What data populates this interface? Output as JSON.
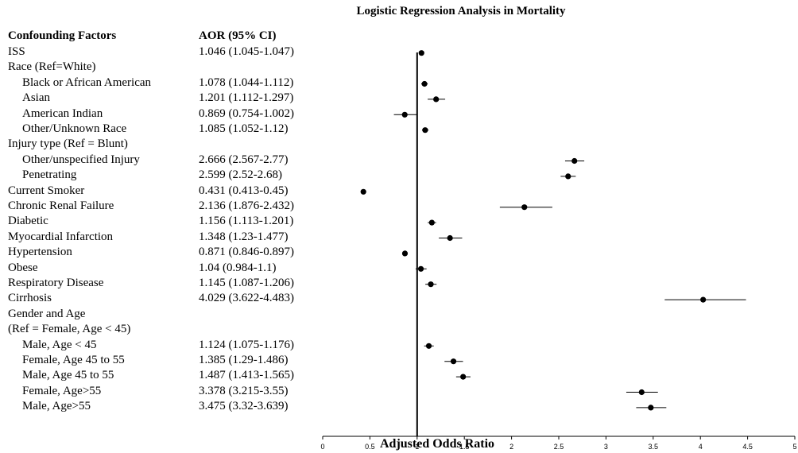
{
  "chart_data": {
    "type": "forest",
    "title": "Logistic Regression Analysis in Mortality",
    "xlabel": "Adjusted Odds Ratio",
    "col_headers": [
      "Confounding Factors",
      "AOR (95% CI)"
    ],
    "xlim": [
      0,
      5
    ],
    "xticks": [
      "0",
      "0.5",
      "1",
      "1.5",
      "2",
      "2.5",
      "3",
      "3.5",
      "4",
      "4.5",
      "5"
    ],
    "reference_line": 1,
    "rows": [
      {
        "label": "ISS",
        "indent": false,
        "aor_text": "1.046 (1.045-1.047)",
        "aor": 1.046,
        "lo": 1.045,
        "hi": 1.047
      },
      {
        "label": "Race (Ref=White)",
        "indent": false,
        "aor_text": "",
        "aor": null,
        "lo": null,
        "hi": null
      },
      {
        "label": "Black or African American",
        "indent": true,
        "aor_text": "1.078 (1.044-1.112)",
        "aor": 1.078,
        "lo": 1.044,
        "hi": 1.112
      },
      {
        "label": "Asian",
        "indent": true,
        "aor_text": "1.201 (1.112-1.297)",
        "aor": 1.201,
        "lo": 1.112,
        "hi": 1.297
      },
      {
        "label": "American Indian",
        "indent": true,
        "aor_text": "0.869 (0.754-1.002)",
        "aor": 0.869,
        "lo": 0.754,
        "hi": 1.002
      },
      {
        "label": "Other/Unknown Race",
        "indent": true,
        "aor_text": "1.085 (1.052-1.12)",
        "aor": 1.085,
        "lo": 1.052,
        "hi": 1.12
      },
      {
        "label": "Injury type (Ref = Blunt)",
        "indent": false,
        "aor_text": "",
        "aor": null,
        "lo": null,
        "hi": null
      },
      {
        "label": "Other/unspecified Injury",
        "indent": true,
        "aor_text": "2.666 (2.567-2.77)",
        "aor": 2.666,
        "lo": 2.567,
        "hi": 2.77
      },
      {
        "label": "Penetrating",
        "indent": true,
        "aor_text": "2.599 (2.52-2.68)",
        "aor": 2.599,
        "lo": 2.52,
        "hi": 2.68
      },
      {
        "label": "Current Smoker",
        "indent": false,
        "aor_text": "0.431 (0.413-0.45)",
        "aor": 0.431,
        "lo": 0.413,
        "hi": 0.45
      },
      {
        "label": "Chronic Renal Failure",
        "indent": false,
        "aor_text": "2.136 (1.876-2.432)",
        "aor": 2.136,
        "lo": 1.876,
        "hi": 2.432
      },
      {
        "label": "Diabetic",
        "indent": false,
        "aor_text": "1.156 (1.113-1.201)",
        "aor": 1.156,
        "lo": 1.113,
        "hi": 1.201
      },
      {
        "label": "Myocardial Infarction",
        "indent": false,
        "aor_text": "1.348 (1.23-1.477)",
        "aor": 1.348,
        "lo": 1.23,
        "hi": 1.477
      },
      {
        "label": "Hypertension",
        "indent": false,
        "aor_text": "0.871 (0.846-0.897)",
        "aor": 0.871,
        "lo": 0.846,
        "hi": 0.897
      },
      {
        "label": "Obese",
        "indent": false,
        "aor_text": "1.04 (0.984-1.1)",
        "aor": 1.04,
        "lo": 0.984,
        "hi": 1.1
      },
      {
        "label": "Respiratory Disease",
        "indent": false,
        "aor_text": "1.145 (1.087-1.206)",
        "aor": 1.145,
        "lo": 1.087,
        "hi": 1.206
      },
      {
        "label": "Cirrhosis",
        "indent": false,
        "aor_text": "4.029 (3.622-4.483)",
        "aor": 4.029,
        "lo": 3.622,
        "hi": 4.483
      },
      {
        "label": "Gender and Age",
        "indent": false,
        "aor_text": "",
        "aor": null,
        "lo": null,
        "hi": null
      },
      {
        "label": "(Ref = Female, Age < 45)",
        "indent": false,
        "aor_text": "",
        "aor": null,
        "lo": null,
        "hi": null
      },
      {
        "label": "Male, Age < 45",
        "indent": true,
        "aor_text": "1.124 (1.075-1.176)",
        "aor": 1.124,
        "lo": 1.075,
        "hi": 1.176
      },
      {
        "label": "Female, Age 45 to 55",
        "indent": true,
        "aor_text": "1.385 (1.29-1.486)",
        "aor": 1.385,
        "lo": 1.29,
        "hi": 1.486
      },
      {
        "label": "Male, Age 45 to 55",
        "indent": true,
        "aor_text": "1.487 (1.413-1.565)",
        "aor": 1.487,
        "lo": 1.413,
        "hi": 1.565
      },
      {
        "label": "Female, Age>55",
        "indent": true,
        "aor_text": "3.378 (3.215-3.55)",
        "aor": 3.378,
        "lo": 3.215,
        "hi": 3.55
      },
      {
        "label": "Male, Age>55",
        "indent": true,
        "aor_text": "3.475 (3.32-3.639)",
        "aor": 3.475,
        "lo": 3.32,
        "hi": 3.639
      }
    ]
  }
}
